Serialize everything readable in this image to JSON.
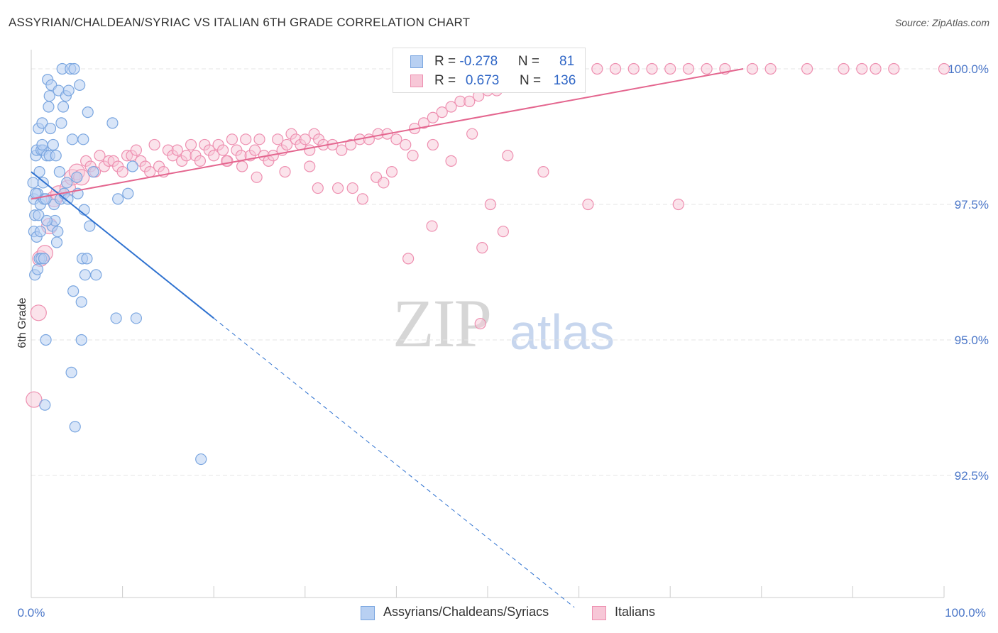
{
  "title": "ASSYRIAN/CHALDEAN/SYRIAC VS ITALIAN 6TH GRADE CORRELATION CHART",
  "source": "Source: ZipAtlas.com",
  "watermark": {
    "zip": "ZIP",
    "atlas": "atlas"
  },
  "legend": {
    "row1": {
      "r_label": "R = ",
      "r_value": "-0.278",
      "n_label": "N = ",
      "n_value": "81"
    },
    "row2": {
      "r_label": "R = ",
      "r_value": "0.673",
      "n_label": "N = ",
      "n_value": "136"
    }
  },
  "bottom_legend": {
    "s1": "Assyrians/Chaldeans/Syriacs",
    "s2": "Italians"
  },
  "colors": {
    "blue": "#7aa6e0",
    "blue_fill": "#b8d0f2",
    "pink": "#ee8fb0",
    "pink_fill": "#f7c7d7",
    "blue_line": "#2f72d0",
    "pink_line": "#e4668f"
  },
  "chart_data": {
    "type": "scatter",
    "title": "ASSYRIAN/CHALDEAN/SYRIAC VS ITALIAN 6TH GRADE CORRELATION CHART",
    "xlabel": "",
    "ylabel": "6th Grade",
    "xlim": [
      0,
      100
    ],
    "ylim": [
      90.0,
      100.4
    ],
    "x_tick_labels": [
      "0.0%",
      "100.0%"
    ],
    "y_ticks": [
      92.5,
      95.0,
      97.5,
      100.0
    ],
    "y_tick_labels": [
      "92.5%",
      "95.0%",
      "97.5%",
      "100.0%"
    ],
    "grid": true,
    "legend_position": "top-center",
    "series": [
      {
        "name": "Assyrians/Chaldeans/Syriacs",
        "R": -0.278,
        "N": 81,
        "trend": {
          "x0": 0.0,
          "y0": 98.1,
          "x1": 20.0,
          "y1": 95.4,
          "dashed_to_x": 59.5
        },
        "points": [
          [
            0.2,
            97.9
          ],
          [
            0.3,
            97.6
          ],
          [
            0.3,
            97.0
          ],
          [
            0.4,
            96.2
          ],
          [
            0.4,
            97.3
          ],
          [
            0.5,
            98.4
          ],
          [
            0.6,
            98.5
          ],
          [
            0.6,
            96.9
          ],
          [
            0.7,
            97.7
          ],
          [
            0.8,
            98.9
          ],
          [
            0.9,
            96.5
          ],
          [
            1.0,
            97.5
          ],
          [
            1.1,
            98.5
          ],
          [
            1.1,
            96.5
          ],
          [
            1.2,
            99.0
          ],
          [
            1.3,
            98.5
          ],
          [
            1.4,
            97.6
          ],
          [
            1.4,
            96.5
          ],
          [
            1.5,
            93.8
          ],
          [
            1.6,
            95.0
          ],
          [
            1.7,
            98.4
          ],
          [
            1.8,
            99.8
          ],
          [
            1.9,
            99.3
          ],
          [
            2.0,
            99.5
          ],
          [
            2.0,
            98.4
          ],
          [
            2.1,
            98.9
          ],
          [
            2.2,
            99.7
          ],
          [
            2.3,
            97.1
          ],
          [
            2.5,
            97.5
          ],
          [
            2.6,
            97.2
          ],
          [
            2.8,
            96.8
          ],
          [
            3.0,
            99.6
          ],
          [
            3.2,
            97.6
          ],
          [
            3.3,
            99.0
          ],
          [
            3.4,
            100.0
          ],
          [
            3.5,
            99.3
          ],
          [
            3.6,
            97.7
          ],
          [
            3.8,
            99.5
          ],
          [
            4.0,
            97.6
          ],
          [
            4.1,
            99.6
          ],
          [
            4.3,
            100.0
          ],
          [
            4.4,
            94.4
          ],
          [
            4.5,
            98.7
          ],
          [
            4.6,
            95.9
          ],
          [
            4.7,
            100.0
          ],
          [
            4.8,
            93.4
          ],
          [
            5.0,
            98.0
          ],
          [
            5.1,
            97.7
          ],
          [
            5.3,
            99.7
          ],
          [
            5.5,
            95.7
          ],
          [
            5.5,
            95.0
          ],
          [
            5.6,
            96.5
          ],
          [
            5.7,
            98.7
          ],
          [
            5.8,
            97.4
          ],
          [
            5.9,
            96.2
          ],
          [
            6.1,
            96.5
          ],
          [
            6.2,
            99.2
          ],
          [
            6.4,
            97.1
          ],
          [
            6.8,
            98.1
          ],
          [
            7.1,
            96.2
          ],
          [
            8.9,
            99.0
          ],
          [
            9.3,
            95.4
          ],
          [
            9.5,
            97.6
          ],
          [
            10.6,
            97.7
          ],
          [
            11.1,
            98.2
          ],
          [
            11.5,
            95.4
          ],
          [
            18.6,
            92.8
          ],
          [
            0.5,
            97.7
          ],
          [
            0.8,
            97.3
          ],
          [
            1.0,
            97.0
          ],
          [
            1.3,
            97.9
          ],
          [
            1.6,
            97.6
          ],
          [
            1.7,
            97.2
          ],
          [
            2.4,
            98.6
          ],
          [
            2.7,
            98.4
          ],
          [
            3.1,
            98.1
          ],
          [
            3.9,
            97.9
          ],
          [
            0.7,
            96.3
          ],
          [
            1.2,
            98.6
          ],
          [
            2.9,
            97.0
          ],
          [
            0.9,
            98.1
          ]
        ]
      },
      {
        "name": "Italians",
        "R": 0.673,
        "N": 136,
        "trend": {
          "x0": 0.0,
          "y0": 97.6,
          "x1": 78.0,
          "y1": 100.0
        },
        "points": [
          [
            0.3,
            93.9
          ],
          [
            0.8,
            95.5
          ],
          [
            1.0,
            96.5
          ],
          [
            1.5,
            96.6
          ],
          [
            2.0,
            97.1
          ],
          [
            2.5,
            97.6
          ],
          [
            3.0,
            97.7
          ],
          [
            4.0,
            97.8
          ],
          [
            4.5,
            98.0
          ],
          [
            5.0,
            98.1
          ],
          [
            5.5,
            98.0
          ],
          [
            6.0,
            98.3
          ],
          [
            6.5,
            98.2
          ],
          [
            7.0,
            98.1
          ],
          [
            7.5,
            98.4
          ],
          [
            8.0,
            98.2
          ],
          [
            8.5,
            98.3
          ],
          [
            9.0,
            98.3
          ],
          [
            9.5,
            98.2
          ],
          [
            10.0,
            98.1
          ],
          [
            10.5,
            98.4
          ],
          [
            11.0,
            98.4
          ],
          [
            11.5,
            98.5
          ],
          [
            12.0,
            98.3
          ],
          [
            12.5,
            98.2
          ],
          [
            13.0,
            98.1
          ],
          [
            13.5,
            98.6
          ],
          [
            14.0,
            98.2
          ],
          [
            14.5,
            98.1
          ],
          [
            15.0,
            98.5
          ],
          [
            15.5,
            98.4
          ],
          [
            16.0,
            98.5
          ],
          [
            16.5,
            98.3
          ],
          [
            17.0,
            98.4
          ],
          [
            17.5,
            98.6
          ],
          [
            18.0,
            98.4
          ],
          [
            18.5,
            98.3
          ],
          [
            19.0,
            98.6
          ],
          [
            19.5,
            98.5
          ],
          [
            20.0,
            98.4
          ],
          [
            20.5,
            98.6
          ],
          [
            21.0,
            98.5
          ],
          [
            21.5,
            98.3
          ],
          [
            22.0,
            98.7
          ],
          [
            22.5,
            98.5
          ],
          [
            23.0,
            98.4
          ],
          [
            23.5,
            98.7
          ],
          [
            24.0,
            98.4
          ],
          [
            24.5,
            98.5
          ],
          [
            25.0,
            98.7
          ],
          [
            25.5,
            98.4
          ],
          [
            26.0,
            98.3
          ],
          [
            26.5,
            98.4
          ],
          [
            27.0,
            98.7
          ],
          [
            27.5,
            98.5
          ],
          [
            28.0,
            98.6
          ],
          [
            28.5,
            98.8
          ],
          [
            29.0,
            98.7
          ],
          [
            29.5,
            98.6
          ],
          [
            30.0,
            98.7
          ],
          [
            30.5,
            98.5
          ],
          [
            31.0,
            98.8
          ],
          [
            31.5,
            98.7
          ],
          [
            32.0,
            98.6
          ],
          [
            33.0,
            98.6
          ],
          [
            34.0,
            98.5
          ],
          [
            35.0,
            98.6
          ],
          [
            36.0,
            98.7
          ],
          [
            37.0,
            98.7
          ],
          [
            38.0,
            98.8
          ],
          [
            39.0,
            98.8
          ],
          [
            40.0,
            98.7
          ],
          [
            41.0,
            98.6
          ],
          [
            42.0,
            98.9
          ],
          [
            43.0,
            99.0
          ],
          [
            44.0,
            99.1
          ],
          [
            45.0,
            99.2
          ],
          [
            46.0,
            99.3
          ],
          [
            47.0,
            99.4
          ],
          [
            48.0,
            99.4
          ],
          [
            49.0,
            99.5
          ],
          [
            50.0,
            99.6
          ],
          [
            51.0,
            99.6
          ],
          [
            52.0,
            99.7
          ],
          [
            53.0,
            99.7
          ],
          [
            54.0,
            99.8
          ],
          [
            55.0,
            99.8
          ],
          [
            56.0,
            99.8
          ],
          [
            57.0,
            99.9
          ],
          [
            58.0,
            99.9
          ],
          [
            59.0,
            99.9
          ],
          [
            60.0,
            100.0
          ],
          [
            62.0,
            100.0
          ],
          [
            64.0,
            100.0
          ],
          [
            66.0,
            100.0
          ],
          [
            68.0,
            100.0
          ],
          [
            70.0,
            100.0
          ],
          [
            72.0,
            100.0
          ],
          [
            74.0,
            100.0
          ],
          [
            76.0,
            100.0
          ],
          [
            79.0,
            100.0
          ],
          [
            81.0,
            100.0
          ],
          [
            85.0,
            100.0
          ],
          [
            89.0,
            100.0
          ],
          [
            91.0,
            100.0
          ],
          [
            92.5,
            100.0
          ],
          [
            94.5,
            100.0
          ],
          [
            100.0,
            100.0
          ],
          [
            30.5,
            98.2
          ],
          [
            31.4,
            97.8
          ],
          [
            33.6,
            97.8
          ],
          [
            35.2,
            97.8
          ],
          [
            36.3,
            97.6
          ],
          [
            37.8,
            98.0
          ],
          [
            38.6,
            97.9
          ],
          [
            39.5,
            98.1
          ],
          [
            41.8,
            98.4
          ],
          [
            44.0,
            98.6
          ],
          [
            46.0,
            98.3
          ],
          [
            48.3,
            98.8
          ],
          [
            50.3,
            97.5
          ],
          [
            51.7,
            97.0
          ],
          [
            52.2,
            98.4
          ],
          [
            56.1,
            98.1
          ],
          [
            61.0,
            97.5
          ],
          [
            70.9,
            97.5
          ],
          [
            41.3,
            96.5
          ],
          [
            43.9,
            97.1
          ],
          [
            49.4,
            96.7
          ],
          [
            49.2,
            95.3
          ],
          [
            27.8,
            98.1
          ],
          [
            24.7,
            98.0
          ],
          [
            23.1,
            98.2
          ],
          [
            21.4,
            98.3
          ]
        ]
      }
    ]
  }
}
